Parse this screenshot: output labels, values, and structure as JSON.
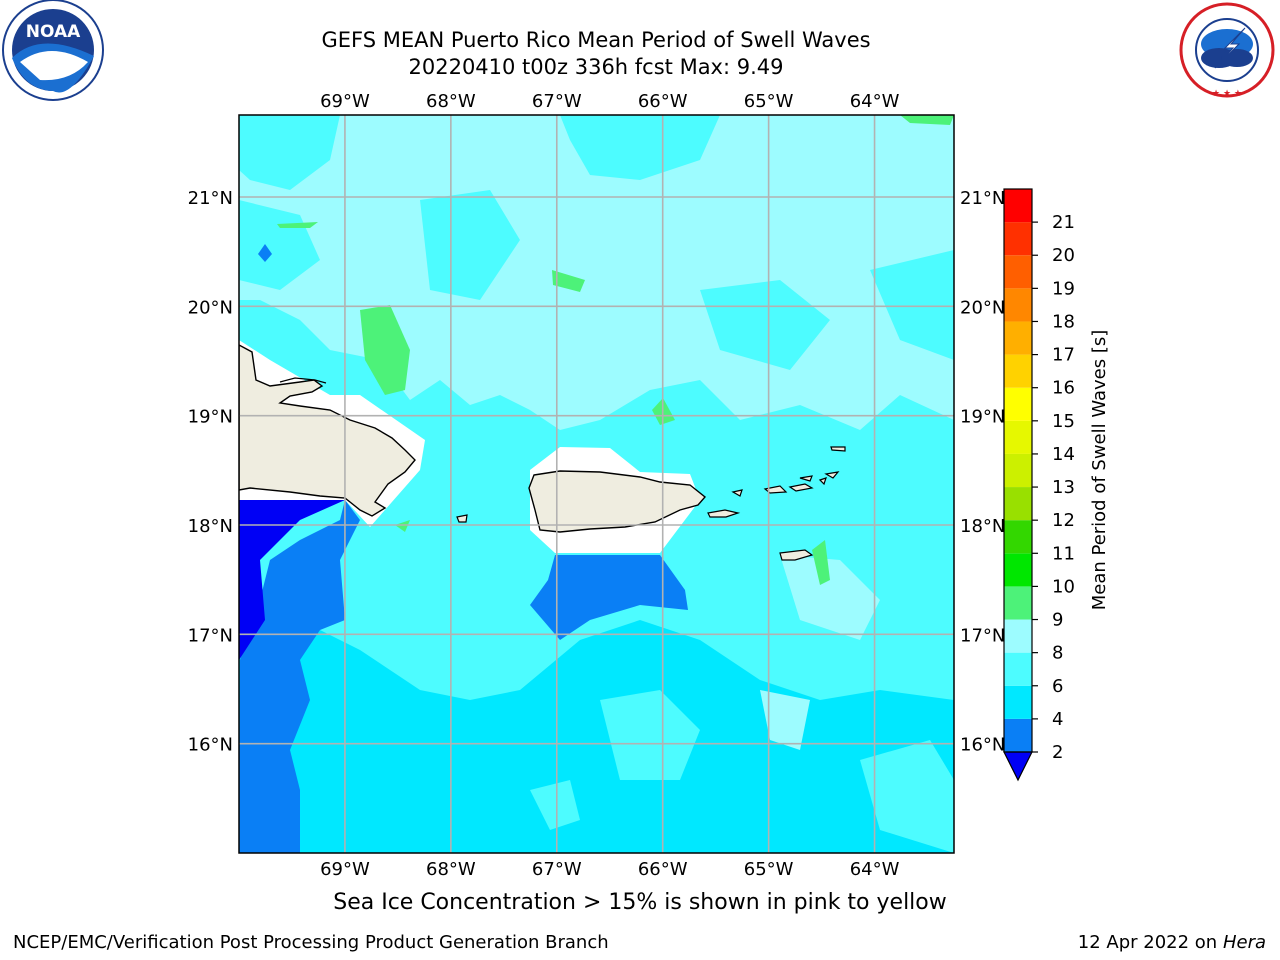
{
  "header": {
    "title_line1": "GEFS MEAN Puerto Rico Mean Period of Swell Waves",
    "title_line2": "20220410 t00z 336h fcst   Max: 9.49"
  },
  "logos": {
    "left": {
      "name": "NOAA",
      "text": "NOAA",
      "ring_text": "NATIONAL OCEANIC AND ATMOSPHERIC ADMINISTRATION · U.S. DEPARTMENT OF COMMERCE"
    },
    "right": {
      "name": "National Weather Service",
      "ring_text": "NATIONAL WEATHER SERVICE"
    }
  },
  "map": {
    "lon_labels": [
      "69°W",
      "68°W",
      "67°W",
      "66°W",
      "65°W",
      "64°W"
    ],
    "lat_labels": [
      "21°N",
      "20°N",
      "19°N",
      "18°N",
      "17°N",
      "16°N"
    ],
    "lon_values": [
      -69,
      -68,
      -67,
      -66,
      -65,
      -64
    ],
    "lat_values": [
      21,
      20,
      19,
      18,
      17,
      16
    ],
    "extent": {
      "lon_min": -70,
      "lon_max": -63.25,
      "lat_min": 15,
      "lat_max": 21.75
    }
  },
  "colorbar": {
    "label": "Mean Period of Swell Waves [s]",
    "ticks": [
      "2",
      "4",
      "6",
      "8",
      "9",
      "10",
      "11",
      "12",
      "13",
      "14",
      "15",
      "16",
      "17",
      "18",
      "19",
      "20",
      "21"
    ],
    "colors": [
      "#0a7ff5",
      "#00e8ff",
      "#4dfcff",
      "#9dfcff",
      "#4df279",
      "#00e700",
      "#33d700",
      "#99e000",
      "#ccf000",
      "#e6f800",
      "#ffff00",
      "#ffd200",
      "#ffaf00",
      "#ff8700",
      "#ff5f00",
      "#ff3000",
      "#ff0000"
    ],
    "extend_color": "#0000f5"
  },
  "footer": {
    "note": "Sea Ice Concentration > 15% is shown in pink to yellow",
    "credit": "NCEP/EMC/Verification Post Processing Product Generation Branch",
    "date": "12 Apr 2022 on",
    "host": "Hera"
  }
}
